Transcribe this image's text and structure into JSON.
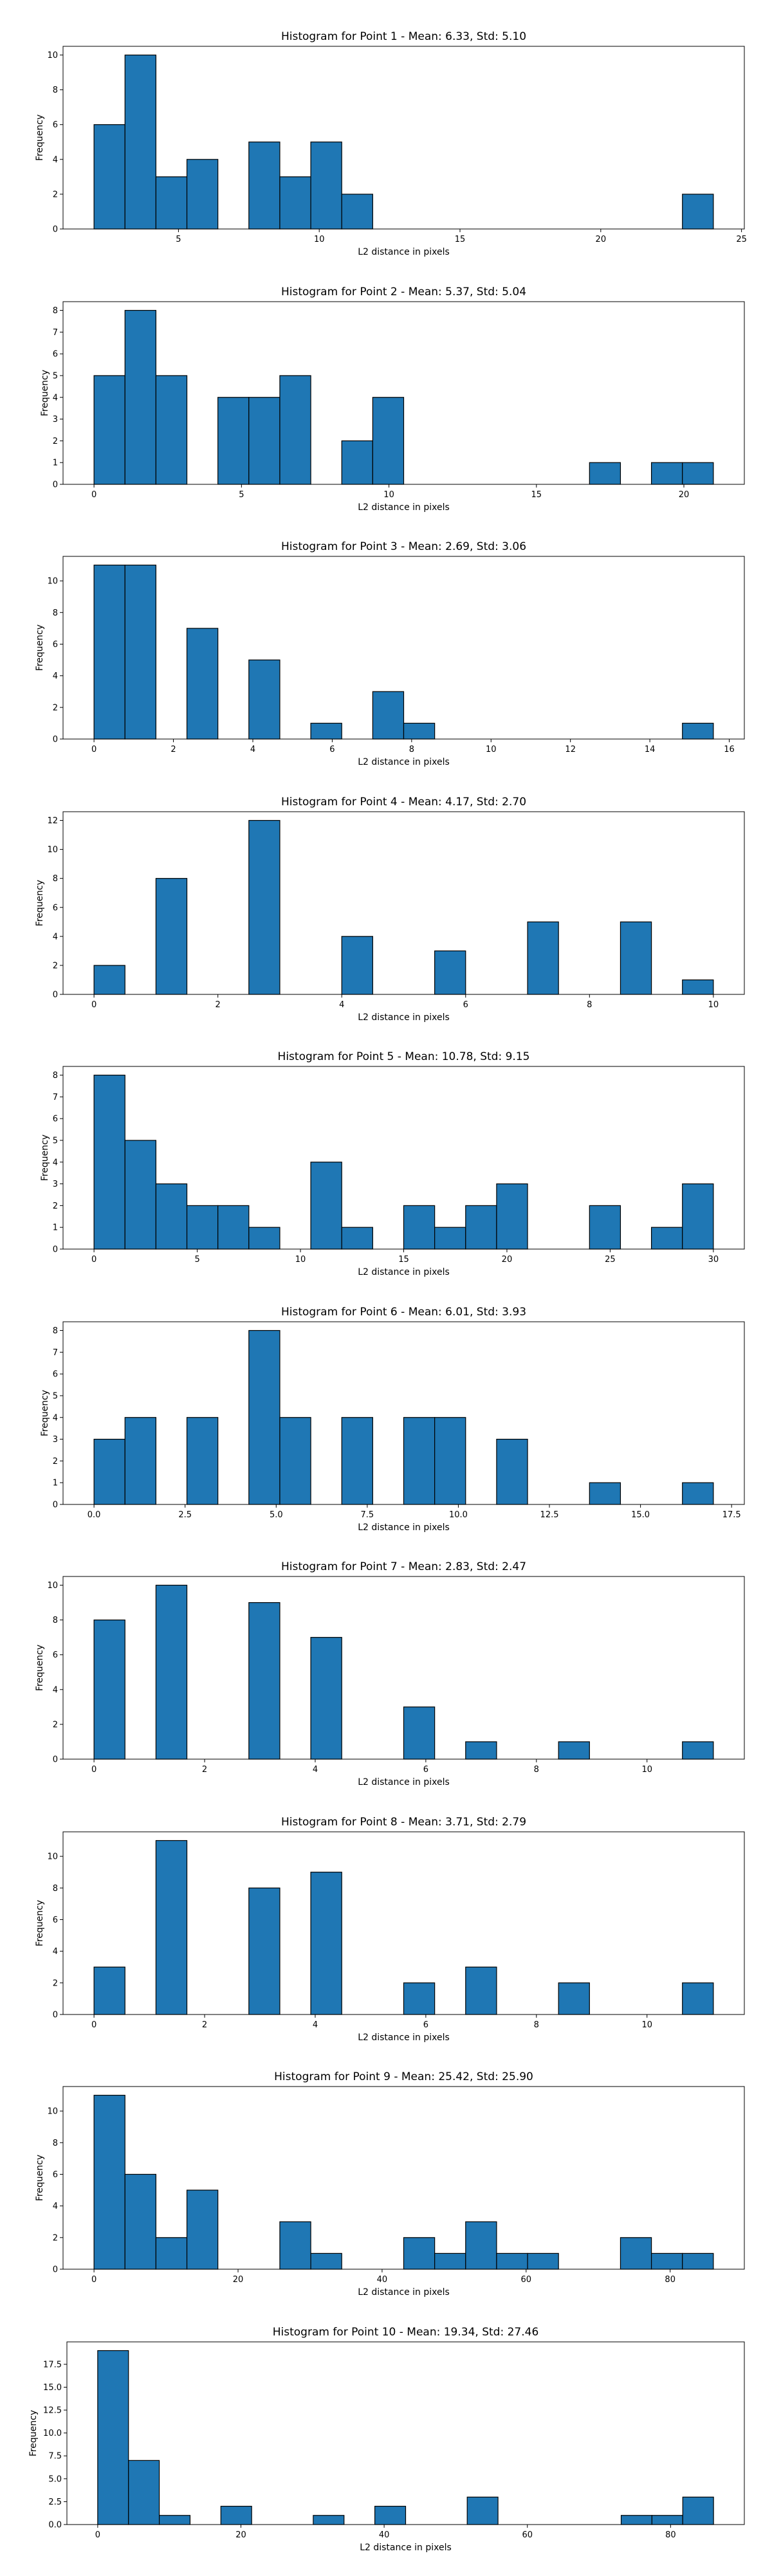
{
  "colors": {
    "bar_fill": "#1f77b4",
    "bar_edge": "#000000",
    "axis": "#000000",
    "background": "#ffffff"
  },
  "chart_data": [
    {
      "type": "bar",
      "title": "Histogram for Point 1 - Mean: 6.33, Std: 5.10",
      "xlabel": "L2 distance in pixels",
      "ylabel": "Frequency",
      "xlim": [
        0.9,
        25.1
      ],
      "ylim": [
        0,
        10.5
      ],
      "xticks": [
        5,
        10,
        15,
        20,
        25
      ],
      "xtick_labels": [
        "5",
        "10",
        "15",
        "20",
        "25"
      ],
      "yticks": [
        0,
        2,
        4,
        6,
        8,
        10
      ],
      "ytick_labels": [
        "0",
        "2",
        "4",
        "6",
        "8",
        "10"
      ],
      "bin_edges": [
        2.0,
        3.1,
        4.2,
        5.3,
        6.4,
        7.5,
        8.6,
        9.7,
        10.8,
        11.9,
        13.0,
        14.1,
        15.2,
        16.3,
        17.4,
        18.5,
        19.6,
        20.7,
        21.8,
        22.9,
        24.0
      ],
      "counts": [
        6,
        10,
        3,
        4,
        0,
        5,
        3,
        5,
        2,
        0,
        0,
        0,
        0,
        0,
        0,
        0,
        0,
        0,
        0,
        2
      ],
      "grid": false,
      "legend": "none"
    },
    {
      "type": "bar",
      "title": "Histogram for Point 2 - Mean: 5.37, Std: 5.04",
      "xlabel": "L2 distance in pixels",
      "ylabel": "Frequency",
      "xlim": [
        -1.05,
        22.05
      ],
      "ylim": [
        0,
        8.4
      ],
      "xticks": [
        0,
        5,
        10,
        15,
        20
      ],
      "xtick_labels": [
        "0",
        "5",
        "10",
        "15",
        "20"
      ],
      "yticks": [
        0,
        1,
        2,
        3,
        4,
        5,
        6,
        7,
        8
      ],
      "ytick_labels": [
        "0",
        "1",
        "2",
        "3",
        "4",
        "5",
        "6",
        "7",
        "8"
      ],
      "bin_edges": [
        0.0,
        1.05,
        2.1,
        3.15,
        4.2,
        5.25,
        6.3,
        7.35,
        8.4,
        9.45,
        10.5,
        11.55,
        12.6,
        13.65,
        14.7,
        15.75,
        16.8,
        17.85,
        18.9,
        19.95,
        21.0
      ],
      "counts": [
        5,
        8,
        5,
        0,
        4,
        4,
        5,
        0,
        2,
        4,
        0,
        0,
        0,
        0,
        0,
        0,
        1,
        0,
        1,
        1
      ],
      "grid": false,
      "legend": "none"
    },
    {
      "type": "bar",
      "title": "Histogram for Point 3 - Mean: 2.69, Std: 3.06",
      "xlabel": "L2 distance in pixels",
      "ylabel": "Frequency",
      "xlim": [
        -0.78,
        16.38
      ],
      "ylim": [
        0,
        11.55
      ],
      "xticks": [
        0,
        2,
        4,
        6,
        8,
        10,
        12,
        14,
        16
      ],
      "xtick_labels": [
        "0",
        "2",
        "4",
        "6",
        "8",
        "10",
        "12",
        "14",
        "16"
      ],
      "yticks": [
        0,
        2,
        4,
        6,
        8,
        10
      ],
      "ytick_labels": [
        "0",
        "2",
        "4",
        "6",
        "8",
        "10"
      ],
      "bin_edges": [
        0.0,
        0.78,
        1.56,
        2.34,
        3.12,
        3.9,
        4.68,
        5.46,
        6.24,
        7.02,
        7.8,
        8.58,
        9.36,
        10.14,
        10.92,
        11.7,
        12.48,
        13.26,
        14.04,
        14.82,
        15.6
      ],
      "counts": [
        11,
        11,
        0,
        7,
        0,
        5,
        0,
        1,
        0,
        3,
        1,
        0,
        0,
        0,
        0,
        0,
        0,
        0,
        0,
        1
      ],
      "grid": false,
      "legend": "none"
    },
    {
      "type": "bar",
      "title": "Histogram for Point 4 - Mean: 4.17, Std: 2.70",
      "xlabel": "L2 distance in pixels",
      "ylabel": "Frequency",
      "xlim": [
        -0.5,
        10.5
      ],
      "ylim": [
        0,
        12.6
      ],
      "xticks": [
        0,
        2,
        4,
        6,
        8,
        10
      ],
      "xtick_labels": [
        "0",
        "2",
        "4",
        "6",
        "8",
        "10"
      ],
      "yticks": [
        0,
        2,
        4,
        6,
        8,
        10,
        12
      ],
      "ytick_labels": [
        "0",
        "2",
        "4",
        "6",
        "8",
        "10",
        "12"
      ],
      "bin_edges": [
        0.0,
        0.5,
        1.0,
        1.5,
        2.0,
        2.5,
        3.0,
        3.5,
        4.0,
        4.5,
        5.0,
        5.5,
        6.0,
        6.5,
        7.0,
        7.5,
        8.0,
        8.5,
        9.0,
        9.5,
        10.0
      ],
      "counts": [
        2,
        0,
        8,
        0,
        0,
        12,
        0,
        0,
        4,
        0,
        0,
        3,
        0,
        0,
        5,
        0,
        0,
        5,
        0,
        1
      ],
      "grid": false,
      "legend": "none"
    },
    {
      "type": "bar",
      "title": "Histogram for Point 5 - Mean: 10.78, Std: 9.15",
      "xlabel": "L2 distance in pixels",
      "ylabel": "Frequency",
      "xlim": [
        -1.5,
        31.5
      ],
      "ylim": [
        0,
        8.4
      ],
      "xticks": [
        0,
        5,
        10,
        15,
        20,
        25,
        30
      ],
      "xtick_labels": [
        "0",
        "5",
        "10",
        "15",
        "20",
        "25",
        "30"
      ],
      "yticks": [
        0,
        1,
        2,
        3,
        4,
        5,
        6,
        7,
        8
      ],
      "ytick_labels": [
        "0",
        "1",
        "2",
        "3",
        "4",
        "5",
        "6",
        "7",
        "8"
      ],
      "bin_edges": [
        0.0,
        1.5,
        3.0,
        4.5,
        6.0,
        7.5,
        9.0,
        10.5,
        12.0,
        13.5,
        15.0,
        16.5,
        18.0,
        19.5,
        21.0,
        22.5,
        24.0,
        25.5,
        27.0,
        28.5,
        30.0
      ],
      "counts": [
        8,
        5,
        3,
        2,
        2,
        1,
        0,
        4,
        1,
        0,
        2,
        1,
        2,
        3,
        0,
        0,
        2,
        0,
        1,
        3
      ],
      "grid": false,
      "legend": "none"
    },
    {
      "type": "bar",
      "title": "Histogram for Point 6 - Mean: 6.01, Std: 3.93",
      "xlabel": "L2 distance in pixels",
      "ylabel": "Frequency",
      "xlim": [
        -0.85,
        17.85
      ],
      "ylim": [
        0,
        8.4
      ],
      "xticks": [
        0,
        2.5,
        5,
        7.5,
        10,
        12.5,
        15,
        17.5
      ],
      "xtick_labels": [
        "0.0",
        "2.5",
        "5.0",
        "7.5",
        "10.0",
        "12.5",
        "15.0",
        "17.5"
      ],
      "yticks": [
        0,
        1,
        2,
        3,
        4,
        5,
        6,
        7,
        8
      ],
      "ytick_labels": [
        "0",
        "1",
        "2",
        "3",
        "4",
        "5",
        "6",
        "7",
        "8"
      ],
      "bin_edges": [
        0.0,
        0.85,
        1.7,
        2.55,
        3.4,
        4.25,
        5.1,
        5.95,
        6.8,
        7.65,
        8.5,
        9.35,
        10.2,
        11.05,
        11.9,
        12.75,
        13.6,
        14.45,
        15.3,
        16.15,
        17.0
      ],
      "counts": [
        3,
        4,
        0,
        4,
        0,
        8,
        4,
        0,
        4,
        0,
        4,
        4,
        0,
        3,
        0,
        0,
        1,
        0,
        0,
        1
      ],
      "grid": false,
      "legend": "none"
    },
    {
      "type": "bar",
      "title": "Histogram for Point 7 - Mean: 2.83, Std: 2.47",
      "xlabel": "L2 distance in pixels",
      "ylabel": "Frequency",
      "xlim": [
        -0.56,
        11.76
      ],
      "ylim": [
        0,
        10.5
      ],
      "xticks": [
        0,
        2,
        4,
        6,
        8,
        10
      ],
      "xtick_labels": [
        "0",
        "2",
        "4",
        "6",
        "8",
        "10"
      ],
      "yticks": [
        0,
        2,
        4,
        6,
        8,
        10
      ],
      "ytick_labels": [
        "0",
        "2",
        "4",
        "6",
        "8",
        "10"
      ],
      "bin_edges": [
        0.0,
        0.56,
        1.12,
        1.68,
        2.24,
        2.8,
        3.36,
        3.92,
        4.48,
        5.04,
        5.6,
        6.16,
        6.72,
        7.28,
        7.84,
        8.4,
        8.96,
        9.52,
        10.08,
        10.64,
        11.2
      ],
      "counts": [
        8,
        0,
        10,
        0,
        0,
        9,
        0,
        7,
        0,
        0,
        3,
        0,
        1,
        0,
        0,
        1,
        0,
        0,
        0,
        1
      ],
      "grid": false,
      "legend": "none"
    },
    {
      "type": "bar",
      "title": "Histogram for Point 8 - Mean: 3.71, Std: 2.79",
      "xlabel": "L2 distance in pixels",
      "ylabel": "Frequency",
      "xlim": [
        -0.56,
        11.76
      ],
      "ylim": [
        0,
        11.55
      ],
      "xticks": [
        0,
        2,
        4,
        6,
        8,
        10
      ],
      "xtick_labels": [
        "0",
        "2",
        "4",
        "6",
        "8",
        "10"
      ],
      "yticks": [
        0,
        2,
        4,
        6,
        8,
        10
      ],
      "ytick_labels": [
        "0",
        "2",
        "4",
        "6",
        "8",
        "10"
      ],
      "bin_edges": [
        0.0,
        0.56,
        1.12,
        1.68,
        2.24,
        2.8,
        3.36,
        3.92,
        4.48,
        5.04,
        5.6,
        6.16,
        6.72,
        7.28,
        7.84,
        8.4,
        8.96,
        9.52,
        10.08,
        10.64,
        11.2
      ],
      "counts": [
        3,
        0,
        11,
        0,
        0,
        8,
        0,
        9,
        0,
        0,
        2,
        0,
        3,
        0,
        0,
        2,
        0,
        0,
        0,
        2
      ],
      "grid": false,
      "legend": "none"
    },
    {
      "type": "bar",
      "title": "Histogram for Point 9 - Mean: 25.42, Std: 25.90",
      "xlabel": "L2 distance in pixels",
      "ylabel": "Frequency",
      "xlim": [
        -4.3,
        90.3
      ],
      "ylim": [
        0,
        11.55
      ],
      "xticks": [
        0,
        20,
        40,
        60,
        80
      ],
      "xtick_labels": [
        "0",
        "20",
        "40",
        "60",
        "80"
      ],
      "yticks": [
        0,
        2,
        4,
        6,
        8,
        10
      ],
      "ytick_labels": [
        "0",
        "2",
        "4",
        "6",
        "8",
        "10"
      ],
      "bin_edges": [
        0.0,
        4.3,
        8.6,
        12.9,
        17.2,
        21.5,
        25.8,
        30.1,
        34.4,
        38.7,
        43.0,
        47.3,
        51.6,
        55.9,
        60.2,
        64.5,
        68.8,
        73.1,
        77.4,
        81.7,
        86.0
      ],
      "counts": [
        11,
        6,
        2,
        5,
        0,
        0,
        3,
        1,
        0,
        0,
        2,
        1,
        3,
        1,
        1,
        0,
        0,
        2,
        1,
        1
      ],
      "grid": false,
      "legend": "none"
    },
    {
      "type": "bar",
      "title": "Histogram for Point 10 - Mean: 19.34, Std: 27.46",
      "xlabel": "L2 distance in pixels",
      "ylabel": "Frequency",
      "xlim": [
        -4.3,
        90.3
      ],
      "ylim": [
        0,
        19.95
      ],
      "xticks": [
        0,
        20,
        40,
        60,
        80
      ],
      "xtick_labels": [
        "0",
        "20",
        "40",
        "60",
        "80"
      ],
      "yticks": [
        0,
        2.5,
        5,
        7.5,
        10,
        12.5,
        15,
        17.5
      ],
      "ytick_labels": [
        "0.0",
        "2.5",
        "5.0",
        "7.5",
        "10.0",
        "12.5",
        "15.0",
        "17.5"
      ],
      "bin_edges": [
        0.0,
        4.3,
        8.6,
        12.9,
        17.2,
        21.5,
        25.8,
        30.1,
        34.4,
        38.7,
        43.0,
        47.3,
        51.6,
        55.9,
        60.2,
        64.5,
        68.8,
        73.1,
        77.4,
        81.7,
        86.0
      ],
      "counts": [
        19,
        7,
        1,
        0,
        2,
        0,
        0,
        1,
        0,
        2,
        0,
        0,
        3,
        0,
        0,
        0,
        0,
        1,
        1,
        3
      ],
      "grid": false,
      "legend": "none"
    }
  ]
}
